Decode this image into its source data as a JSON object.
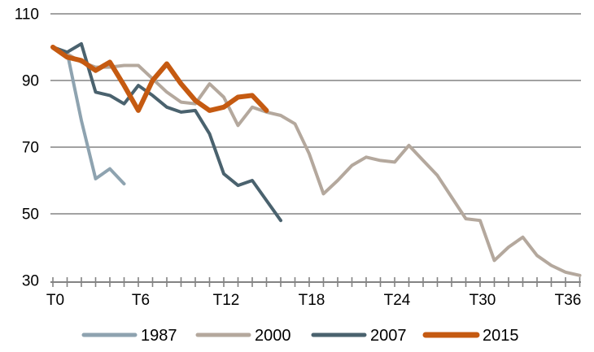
{
  "chart_data": {
    "type": "line",
    "title": "",
    "xlabel": "",
    "ylabel": "",
    "x_unit": "periods (T = months after peak)",
    "x_axis": {
      "tick_min": 0,
      "tick_max": 37,
      "tick_step": 1,
      "label_ticks": [
        {
          "t": 0,
          "label": "T0"
        },
        {
          "t": 6,
          "label": "T6"
        },
        {
          "t": 12,
          "label": "T12"
        },
        {
          "t": 18,
          "label": "T18"
        },
        {
          "t": 24,
          "label": "T24"
        },
        {
          "t": 30,
          "label": "T30"
        },
        {
          "t": 36,
          "label": "T36"
        }
      ]
    },
    "y_axis": {
      "min": 30,
      "max": 110,
      "ticks": [
        {
          "v": 110,
          "label": "110",
          "gridline": true
        },
        {
          "v": 90,
          "label": "90",
          "gridline": true
        },
        {
          "v": 70,
          "label": "70",
          "gridline": true
        },
        {
          "v": 50,
          "label": "50",
          "gridline": true
        },
        {
          "v": 30,
          "label": "30",
          "gridline": false
        }
      ]
    },
    "grid_on": true,
    "legend_position": "bottom-center",
    "colors": {
      "grid": "#838383",
      "axis": "#838383",
      "text": "#000000"
    },
    "series": [
      {
        "name": "1987",
        "color": "#8EA3B0",
        "stroke_width": 4,
        "start_t": 0,
        "values": [
          100,
          98.5,
          78,
          60.5,
          63.5,
          59
        ]
      },
      {
        "name": "2000",
        "color": "#B4A89D",
        "stroke_width": 4,
        "start_t": 0,
        "values": [
          100,
          98,
          95.5,
          94,
          94,
          94.5,
          94.5,
          90.5,
          86.5,
          83.5,
          83,
          89,
          85,
          76.5,
          82,
          80.5,
          79.5,
          77,
          68,
          56,
          60,
          64.5,
          67,
          66,
          65.5,
          70.5,
          66,
          61.5,
          55,
          48.5,
          48,
          36,
          40,
          43,
          37.5,
          34.5,
          32.5,
          31.5
        ]
      },
      {
        "name": "2007",
        "color": "#4A626E",
        "stroke_width": 4,
        "start_t": 0,
        "values": [
          100,
          98.5,
          101,
          86.5,
          85.5,
          83,
          88.5,
          85.5,
          82,
          80.5,
          81,
          74,
          62,
          58.5,
          60,
          54,
          48
        ]
      },
      {
        "name": "2015",
        "color": "#C55A11",
        "stroke_width": 6,
        "start_t": 0,
        "values": [
          100,
          97,
          96,
          93,
          95.5,
          88.5,
          81,
          90,
          95,
          89,
          84,
          81,
          82,
          85,
          85.5,
          81
        ]
      }
    ]
  }
}
